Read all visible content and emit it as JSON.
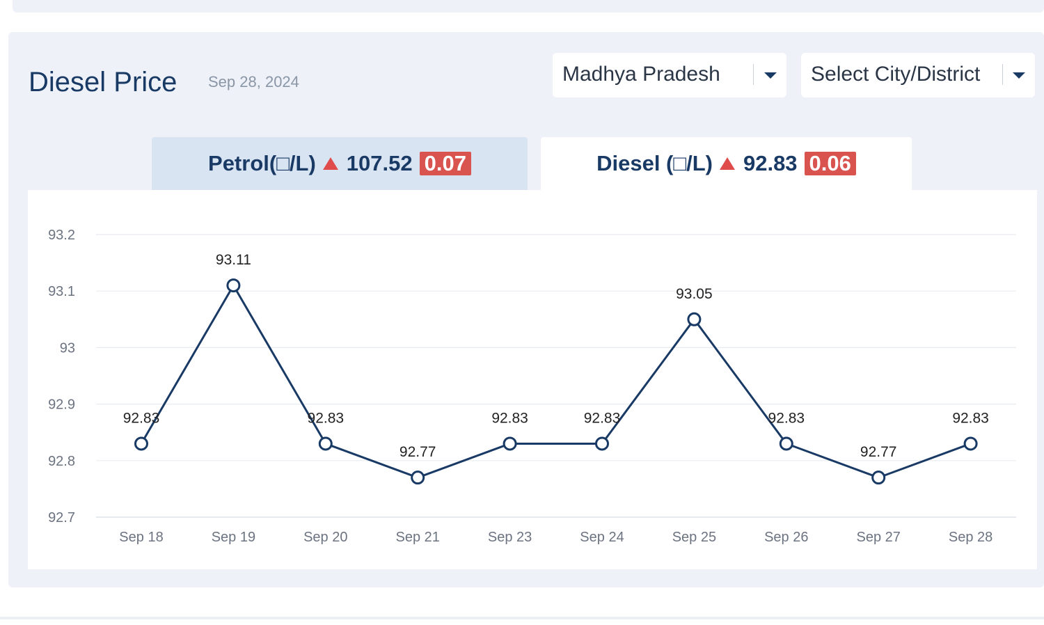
{
  "header": {
    "title": "Diesel Price",
    "date": "Sep 28, 2024"
  },
  "filters": {
    "state": "Madhya Pradesh",
    "city": "Select City/District"
  },
  "tabs": [
    {
      "label": "Petrol(□/L)",
      "price": "107.52",
      "change": "0.07",
      "trend": "up",
      "active": false
    },
    {
      "label": "Diesel (□/L)",
      "price": "92.83",
      "change": "0.06",
      "trend": "up",
      "active": true
    }
  ],
  "colors": {
    "line": "#1a3a66",
    "badge": "#d9534f",
    "up_arrow": "#e04c4c"
  },
  "chart_data": {
    "type": "line",
    "categories": [
      "Sep 18",
      "Sep 19",
      "Sep 20",
      "Sep 21",
      "Sep 23",
      "Sep 24",
      "Sep 25",
      "Sep 26",
      "Sep 27",
      "Sep 28"
    ],
    "values": [
      92.83,
      93.11,
      92.83,
      92.77,
      92.83,
      92.83,
      93.05,
      92.83,
      92.77,
      92.83
    ],
    "data_labels": [
      "92.83",
      "93.11",
      "92.83",
      "92.77",
      "92.83",
      "92.83",
      "93.05",
      "92.83",
      "92.77",
      "92.83"
    ],
    "yticks": [
      "93.2",
      "93.1",
      "93",
      "92.9",
      "92.8",
      "92.7"
    ],
    "ytick_values": [
      93.2,
      93.1,
      93.0,
      92.9,
      92.8,
      92.7
    ],
    "ylim": [
      92.7,
      93.2
    ],
    "grid": true,
    "title": "",
    "xlabel": "",
    "ylabel": ""
  }
}
